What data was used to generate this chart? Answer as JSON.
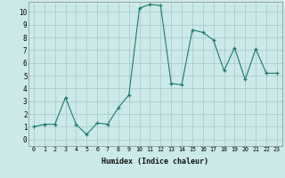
{
  "xlabel": "Humidex (Indice chaleur)",
  "ylabel": "",
  "background_color": "#cce9e9",
  "grid_color": "#aacccc",
  "line_color": "#1a7a6e",
  "marker_color": "#1a7a6e",
  "xlim": [
    -0.5,
    23.5
  ],
  "ylim": [
    -0.5,
    10.8
  ],
  "xticks": [
    0,
    1,
    2,
    3,
    4,
    5,
    6,
    7,
    8,
    9,
    10,
    11,
    12,
    13,
    14,
    15,
    16,
    17,
    18,
    19,
    20,
    21,
    22,
    23
  ],
  "yticks": [
    0,
    1,
    2,
    3,
    4,
    5,
    6,
    7,
    8,
    9,
    10
  ],
  "x": [
    0,
    1,
    2,
    3,
    4,
    5,
    6,
    7,
    8,
    9,
    10,
    11,
    12,
    13,
    14,
    15,
    16,
    17,
    18,
    19,
    20,
    21,
    22,
    23
  ],
  "y": [
    1.0,
    1.2,
    1.2,
    3.3,
    1.2,
    0.4,
    1.3,
    1.2,
    2.5,
    3.5,
    10.3,
    10.6,
    10.5,
    4.4,
    4.3,
    8.6,
    8.4,
    7.8,
    5.4,
    7.2,
    4.7,
    7.1,
    5.2,
    5.2
  ]
}
